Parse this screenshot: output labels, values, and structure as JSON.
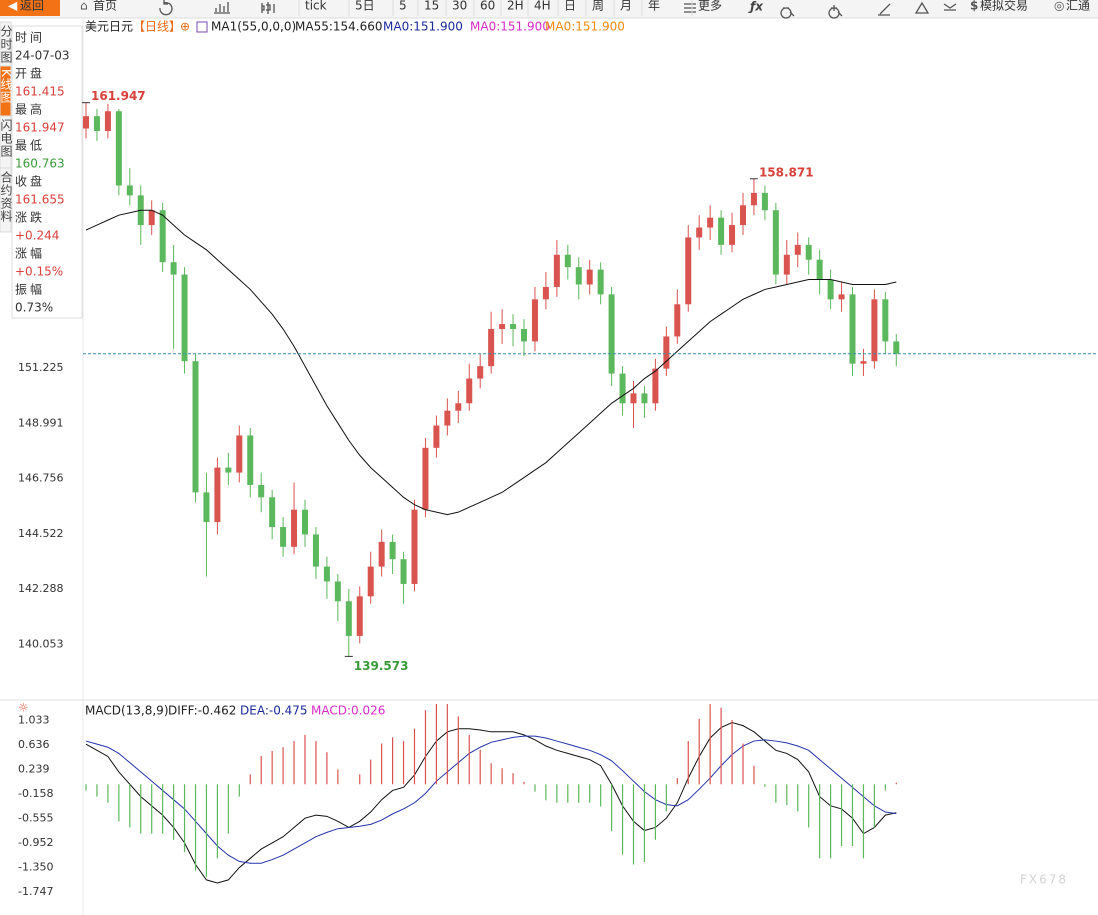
{
  "toolbar": [
    "返回",
    "首页",
    "tick",
    "5日",
    "5",
    "15",
    "30",
    "60",
    "2H",
    "4H",
    "日",
    "周",
    "月",
    "年",
    "更多",
    "模拟交易",
    "汇通"
  ],
  "side_tabs": [
    "分时图",
    "K线图",
    "闪电图",
    "合约资料"
  ],
  "info_panel": [
    {
      "label": "时间",
      "value": "24-07-03",
      "color": "#333333"
    },
    {
      "label": "开盘",
      "value": "161.415",
      "color": "#d9413b"
    },
    {
      "label": "最高",
      "value": "161.947",
      "color": "#d9413b"
    },
    {
      "label": "最低",
      "value": "160.763",
      "color": "#3a9a3a"
    },
    {
      "label": "收盘",
      "value": "161.655",
      "color": "#d9413b"
    },
    {
      "label": "涨跌",
      "value": "+0.244",
      "color": "#d9413b"
    },
    {
      "label": "涨幅",
      "value": "+0.15%",
      "color": "#d9413b"
    },
    {
      "label": "振幅",
      "value": "0.73%",
      "color": "#333333"
    }
  ],
  "watermark": "FX678",
  "chart_data": [
    {
      "type": "candlestick",
      "title": "美元日元",
      "subtitle": "【日线】",
      "legend": [
        {
          "text": "⊕",
          "color": "#e06a1a"
        },
        {
          "text": "MA1(55,0,0,0)",
          "color": "#222222"
        },
        {
          "text": "MA55:154.660",
          "color": "#222222"
        },
        {
          "text": "MA0:151.900",
          "color": "#1c2a9c"
        },
        {
          "text": "MA0:151.900",
          "color": "#d82cc8"
        },
        {
          "text": "MA0:151.900",
          "color": "#f08a12"
        }
      ],
      "up_color": "#d9534f",
      "down_color": "#5cb85c",
      "open": [
        160.9,
        161.4,
        160.8,
        161.6,
        158.6,
        158.2,
        157.0,
        157.6,
        155.5,
        155.0,
        151.5,
        146.2,
        145.0,
        147.2,
        147.0,
        148.5,
        146.5,
        146.0,
        144.8,
        144.0,
        145.5,
        144.5,
        143.2,
        142.6,
        141.8,
        140.4,
        142.0,
        143.2,
        144.2,
        143.5,
        142.5,
        145.5,
        148.0,
        148.9,
        149.5,
        149.8,
        150.8,
        151.3,
        152.8,
        153.0,
        152.8,
        152.3,
        154.0,
        154.5,
        155.8,
        155.3,
        154.6,
        155.2,
        154.2,
        151.0,
        149.8,
        150.2,
        149.8,
        151.2,
        152.5,
        153.8,
        156.5,
        156.9,
        157.3,
        156.2,
        157.0,
        157.8,
        158.3,
        157.6,
        155.0,
        155.8,
        156.2,
        155.6,
        154.8,
        154.0,
        154.2,
        151.4,
        151.5,
        154.0,
        152.3
      ],
      "high": [
        161.947,
        161.7,
        161.9,
        161.7,
        159.3,
        158.6,
        158.0,
        157.9,
        156.2,
        155.3,
        151.8,
        147.0,
        147.6,
        147.8,
        148.9,
        148.8,
        147.0,
        146.3,
        145.2,
        146.6,
        145.9,
        144.8,
        143.6,
        142.9,
        142.3,
        142.4,
        143.8,
        144.7,
        144.5,
        143.8,
        145.9,
        148.4,
        149.3,
        150.0,
        150.3,
        151.4,
        151.8,
        153.5,
        153.6,
        153.4,
        153.2,
        154.5,
        155.1,
        156.4,
        156.2,
        155.7,
        155.6,
        155.5,
        154.5,
        151.3,
        150.7,
        150.5,
        151.6,
        152.9,
        154.4,
        157.0,
        157.4,
        157.8,
        157.6,
        157.5,
        158.3,
        158.871,
        158.6,
        157.9,
        156.4,
        156.7,
        156.5,
        156.0,
        155.2,
        154.7,
        154.5,
        152.0,
        154.4,
        154.3,
        152.6
      ],
      "low": [
        160.5,
        160.4,
        160.5,
        158.2,
        157.8,
        156.2,
        156.6,
        155.1,
        152.0,
        151.0,
        145.8,
        142.8,
        144.5,
        146.5,
        146.6,
        146.0,
        145.4,
        144.3,
        143.6,
        143.7,
        144.0,
        142.7,
        141.9,
        141.0,
        139.573,
        140.1,
        141.7,
        142.8,
        142.9,
        141.7,
        142.2,
        145.2,
        147.6,
        148.5,
        149.0,
        149.5,
        150.4,
        151.0,
        152.2,
        152.1,
        151.7,
        151.9,
        153.6,
        154.1,
        154.8,
        154.0,
        154.2,
        153.8,
        150.5,
        149.3,
        148.8,
        149.2,
        149.5,
        150.9,
        152.2,
        153.5,
        156.0,
        156.4,
        155.8,
        155.9,
        156.6,
        157.4,
        157.2,
        154.6,
        154.6,
        155.3,
        155.0,
        154.2,
        153.6,
        153.5,
        150.9,
        150.9,
        151.2,
        151.8,
        151.3
      ],
      "close": [
        161.4,
        160.8,
        161.6,
        158.6,
        158.2,
        157.0,
        157.6,
        155.5,
        155.0,
        151.5,
        146.2,
        145.0,
        147.2,
        147.0,
        148.5,
        146.5,
        146.0,
        144.8,
        144.0,
        145.5,
        144.5,
        143.2,
        142.6,
        141.8,
        140.4,
        142.0,
        143.2,
        144.2,
        143.5,
        142.5,
        145.5,
        148.0,
        148.9,
        149.5,
        149.8,
        150.8,
        151.3,
        152.8,
        153.0,
        152.8,
        152.3,
        154.0,
        154.5,
        155.8,
        155.3,
        154.6,
        155.2,
        154.2,
        151.0,
        149.8,
        150.2,
        149.8,
        151.2,
        152.5,
        153.8,
        156.5,
        156.9,
        157.3,
        156.2,
        157.0,
        157.8,
        158.3,
        157.6,
        155.0,
        155.8,
        156.2,
        155.6,
        154.8,
        154.0,
        154.2,
        151.4,
        151.5,
        154.0,
        152.3,
        151.8
      ],
      "series": [
        {
          "name": "MA55",
          "color": "#111111",
          "values": [
            156.8,
            157.0,
            157.2,
            157.4,
            157.5,
            157.6,
            157.6,
            157.4,
            157.0,
            156.6,
            156.3,
            156.0,
            155.6,
            155.2,
            154.8,
            154.4,
            153.9,
            153.4,
            152.8,
            152.1,
            151.3,
            150.5,
            149.7,
            149.0,
            148.3,
            147.7,
            147.2,
            146.8,
            146.4,
            146.0,
            145.7,
            145.5,
            145.4,
            145.3,
            145.4,
            145.6,
            145.8,
            146.0,
            146.2,
            146.5,
            146.8,
            147.1,
            147.4,
            147.8,
            148.2,
            148.6,
            149.0,
            149.4,
            149.8,
            150.1,
            150.4,
            150.8,
            151.1,
            151.5,
            151.9,
            152.3,
            152.7,
            153.1,
            153.4,
            153.7,
            154.0,
            154.2,
            154.4,
            154.5,
            154.6,
            154.7,
            154.8,
            154.8,
            154.8,
            154.7,
            154.6,
            154.6,
            154.6,
            154.6,
            154.7
          ]
        }
      ],
      "ylim": [
        138.013,
        164.478
      ],
      "yticks": [
        151.225,
        148.991,
        146.756,
        144.522,
        142.288,
        140.053
      ]
    },
    {
      "type": "macd",
      "legend": [
        {
          "text": "MACD(13,8,9)",
          "color": "#222222"
        },
        {
          "text": "DIFF:-0.462",
          "color": "#222222"
        },
        {
          "text": "DEA:-0.475",
          "color": "#1c2a9c"
        },
        {
          "text": "MACD:0.026",
          "color": "#d82cc8"
        }
      ],
      "up_color": "#d9534f",
      "down_color": "#5cb85c",
      "series": [
        {
          "name": "DIFF",
          "color": "#111111",
          "values": [
            0.65,
            0.55,
            0.45,
            0.2,
            0.0,
            -0.2,
            -0.35,
            -0.5,
            -0.7,
            -0.95,
            -1.3,
            -1.55,
            -1.6,
            -1.55,
            -1.35,
            -1.2,
            -1.05,
            -0.95,
            -0.85,
            -0.7,
            -0.55,
            -0.5,
            -0.52,
            -0.6,
            -0.7,
            -0.6,
            -0.45,
            -0.25,
            -0.1,
            -0.05,
            0.15,
            0.45,
            0.7,
            0.85,
            0.9,
            0.9,
            0.88,
            0.85,
            0.85,
            0.85,
            0.8,
            0.72,
            0.62,
            0.55,
            0.5,
            0.45,
            0.4,
            0.3,
            0.0,
            -0.35,
            -0.6,
            -0.75,
            -0.7,
            -0.55,
            -0.3,
            0.1,
            0.45,
            0.75,
            0.92,
            1.0,
            0.95,
            0.85,
            0.7,
            0.55,
            0.5,
            0.4,
            0.2,
            -0.2,
            -0.35,
            -0.4,
            -0.55,
            -0.8,
            -0.7,
            -0.5,
            -0.462
          ]
        },
        {
          "name": "DEA",
          "color": "#2233aa",
          "values": [
            0.7,
            0.65,
            0.6,
            0.5,
            0.35,
            0.2,
            0.05,
            -0.1,
            -0.25,
            -0.4,
            -0.6,
            -0.8,
            -1.0,
            -1.15,
            -1.25,
            -1.28,
            -1.28,
            -1.22,
            -1.15,
            -1.05,
            -0.95,
            -0.85,
            -0.78,
            -0.72,
            -0.7,
            -0.68,
            -0.65,
            -0.58,
            -0.48,
            -0.4,
            -0.3,
            -0.15,
            0.05,
            0.2,
            0.35,
            0.5,
            0.6,
            0.68,
            0.72,
            0.76,
            0.78,
            0.78,
            0.75,
            0.7,
            0.65,
            0.6,
            0.55,
            0.48,
            0.38,
            0.22,
            0.05,
            -0.12,
            -0.25,
            -0.33,
            -0.35,
            -0.25,
            -0.08,
            0.1,
            0.3,
            0.48,
            0.62,
            0.7,
            0.72,
            0.7,
            0.67,
            0.62,
            0.55,
            0.4,
            0.25,
            0.1,
            -0.05,
            -0.2,
            -0.35,
            -0.45,
            -0.475
          ]
        },
        {
          "name": "MACD",
          "values": [
            -0.1,
            -0.2,
            -0.3,
            -0.6,
            -0.7,
            -0.8,
            -0.8,
            -0.8,
            -0.9,
            -1.1,
            -1.4,
            -1.5,
            -1.2,
            -0.8,
            -0.2,
            0.16,
            0.46,
            0.54,
            0.6,
            0.7,
            0.8,
            0.7,
            0.52,
            0.24,
            0.0,
            0.16,
            0.4,
            0.66,
            0.76,
            0.7,
            0.9,
            1.2,
            1.3,
            1.3,
            1.1,
            0.8,
            0.56,
            0.34,
            0.26,
            0.18,
            0.04,
            -0.12,
            -0.26,
            -0.3,
            -0.3,
            -0.3,
            -0.3,
            -0.36,
            -0.76,
            -1.14,
            -1.3,
            -1.26,
            -0.9,
            -0.44,
            0.1,
            0.7,
            1.06,
            1.3,
            1.24,
            1.04,
            0.66,
            0.3,
            -0.04,
            -0.3,
            -0.34,
            -0.44,
            -0.7,
            -1.2,
            -1.2,
            -1.0,
            -1.0,
            -1.2,
            -0.7,
            -0.1,
            0.026
          ]
        }
      ],
      "ylim": [
        -2.07,
        1.171
      ],
      "yticks": [
        1.033,
        0.636,
        0.239,
        -0.158,
        -0.555,
        -0.952,
        {
          "value": -1.35,
          "label": "-1.350"
        },
        -1.747
      ]
    }
  ]
}
